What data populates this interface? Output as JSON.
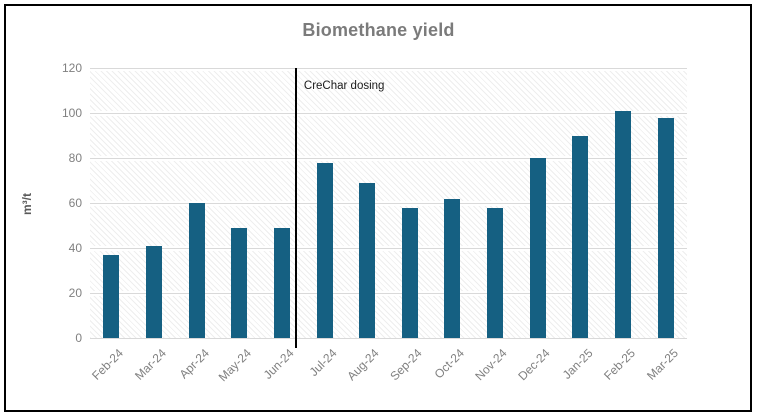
{
  "figure": {
    "background": "#ffffff",
    "border_color": "#000000"
  },
  "chart_data": {
    "type": "bar",
    "title": "Biomethane yield",
    "xlabel": "",
    "ylabel": "m³/t",
    "categories": [
      "Feb-24",
      "Mar-24",
      "Apr-24",
      "May-24",
      "Jun-24",
      "Jul-24",
      "Aug-24",
      "Sep-24",
      "Oct-24",
      "Nov-24",
      "Dec-24",
      "Jan-25",
      "Feb-25",
      "Mar-25"
    ],
    "values": [
      37,
      41,
      60,
      49,
      49,
      78,
      69,
      58,
      62,
      58,
      80,
      90,
      101,
      98
    ],
    "ylim": [
      0,
      120
    ],
    "yticks": [
      0,
      20,
      40,
      60,
      80,
      100,
      120
    ],
    "grid": true,
    "legend_position": "none",
    "plot_background": "diagonal-hatch",
    "bar_color": "#156082",
    "gridline_color": "#d9d9d9",
    "tick_label_color": "#808080",
    "title_color": "#7b7b7b",
    "annotation": {
      "label": "CreChar dosing",
      "between_categories": [
        "Jun-24",
        "Jul-24"
      ],
      "line_color": "#000000"
    }
  }
}
